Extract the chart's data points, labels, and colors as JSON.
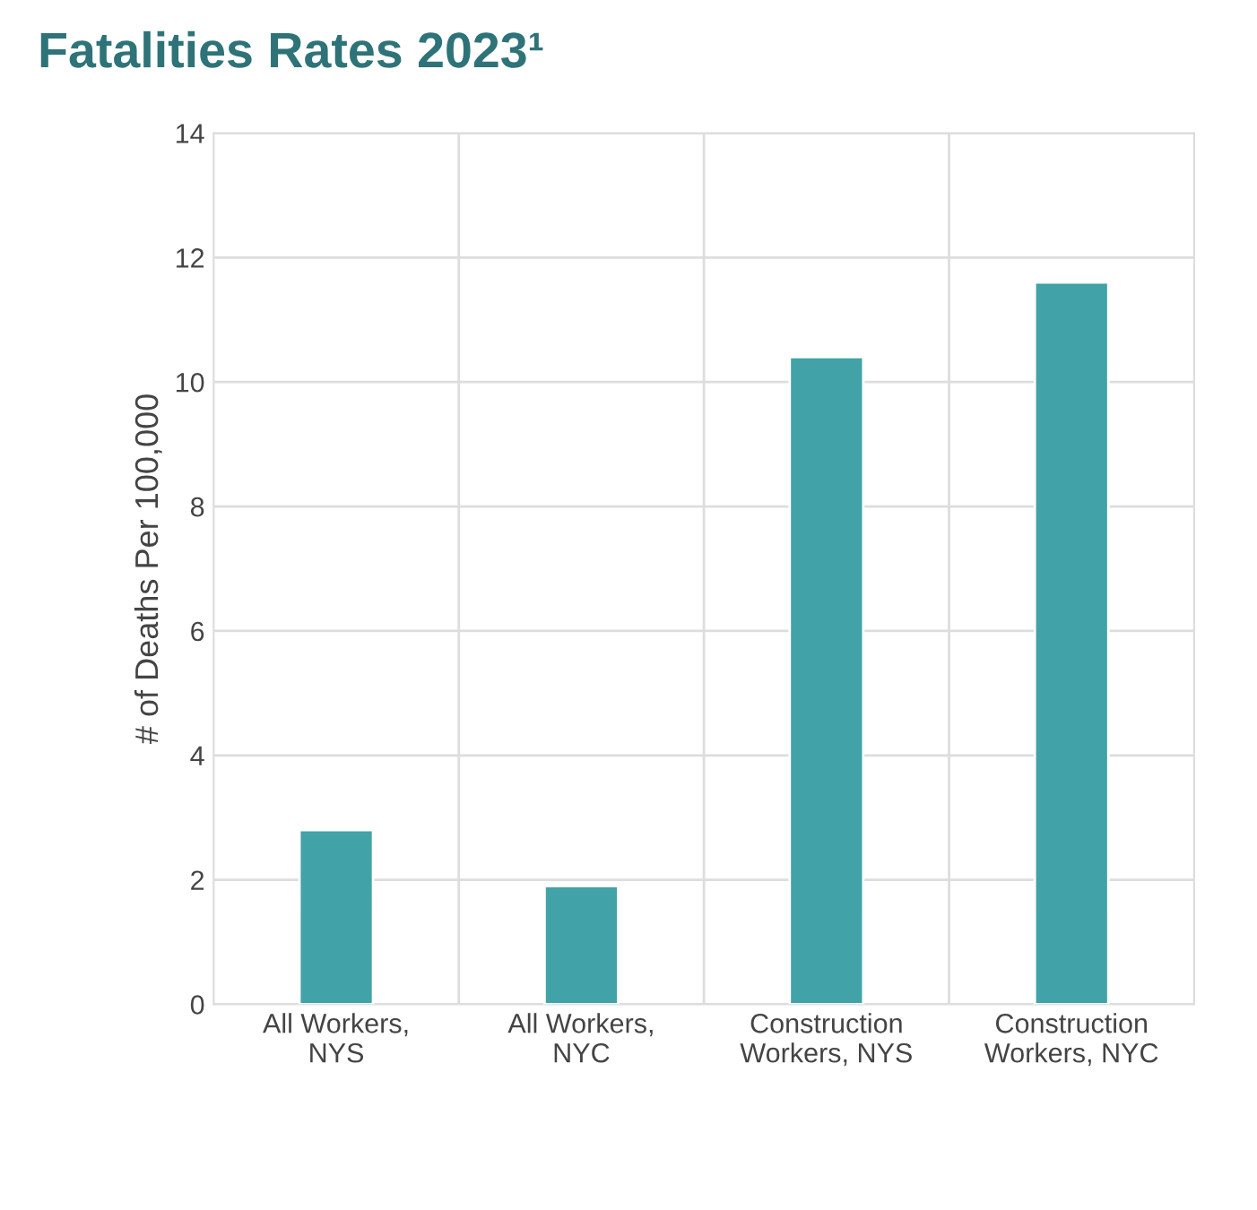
{
  "chart_data": {
    "type": "bar",
    "title": "Fatalities Rates 2023¹",
    "ylabel": "# of Deaths Per 100,000",
    "categories": [
      "All Workers,\nNYS",
      "All Workers,\nNYC",
      "Construction\nWorkers, NYS",
      "Construction\nWorkers, NYC"
    ],
    "values": [
      2.8,
      1.9,
      10.4,
      11.6
    ],
    "color": "#41a2a8",
    "ylim": [
      0,
      14
    ],
    "yticks": [
      0,
      2,
      4,
      6,
      8,
      10,
      12,
      14
    ],
    "grid": true
  }
}
